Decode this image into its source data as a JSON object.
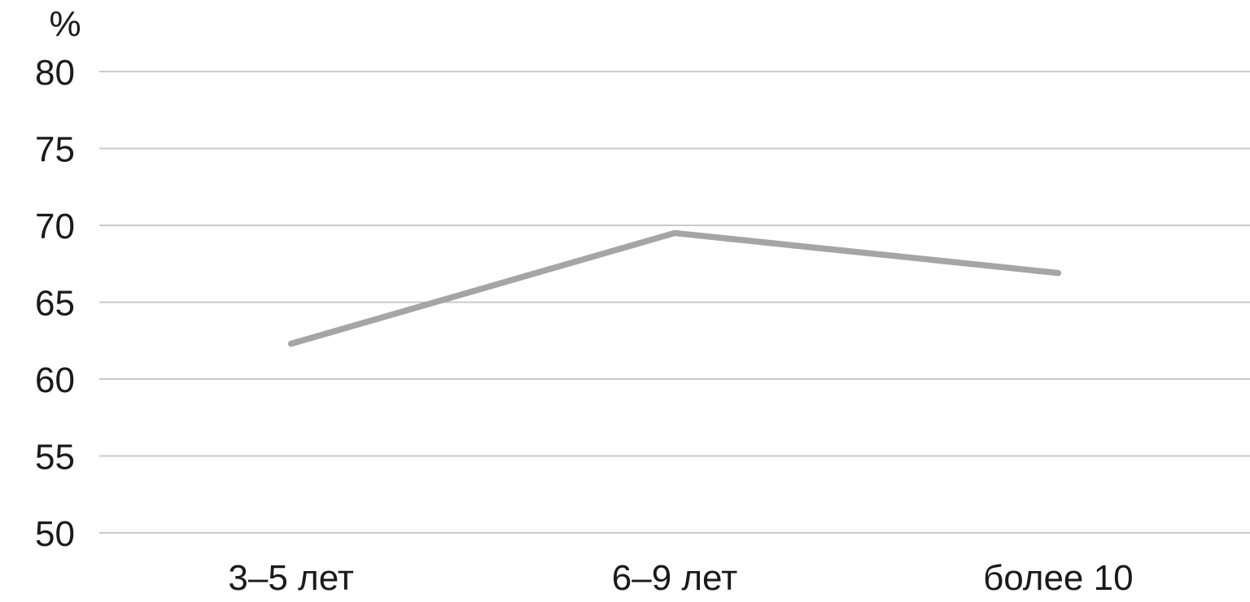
{
  "chart_data": {
    "type": "line",
    "title": "",
    "xlabel": "",
    "ylabel": "%",
    "categories": [
      "3–5 лет",
      "6–9 лет",
      "более 10"
    ],
    "series": [
      {
        "name": "series-1",
        "values": [
          62.3,
          69.5,
          66.9
        ],
        "color": "#a5a5a5"
      }
    ],
    "ylim": [
      50,
      80
    ],
    "yticks": [
      50,
      55,
      60,
      65,
      70,
      75,
      80
    ],
    "grid": true,
    "legend_position": "none",
    "colors": {
      "line": "#a5a5a5",
      "gridline": "#cacaca",
      "text": "#1a1a1a",
      "background": "#ffffff"
    }
  }
}
